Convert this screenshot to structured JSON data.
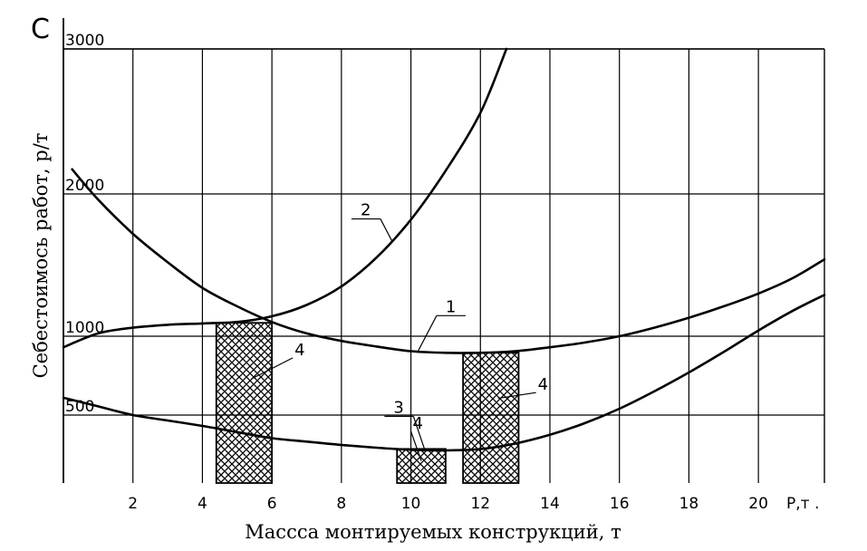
{
  "chart_data": {
    "type": "line",
    "corner_mark": "С",
    "xlabel": "Массса монтируемых конструкций, т",
    "ylabel": "Себестоимось работ, р/т",
    "x_unit_label": "Р,т .",
    "xlim": [
      0,
      21.9
    ],
    "ylim": [
      0,
      3000
    ],
    "grid": true,
    "x_ticks": [
      2,
      4,
      6,
      8,
      10,
      12,
      14,
      16,
      18,
      20
    ],
    "x_tick_labels": [
      "2",
      "4",
      "6",
      "8",
      "10",
      "12",
      "14",
      "16",
      "18",
      "20"
    ],
    "y_ticks": [
      500,
      1000,
      2000,
      3000
    ],
    "y_tick_labels": [
      "500",
      "1000",
      "2000",
      "3000"
    ],
    "series": [
      {
        "name": "1",
        "label_at": [
          11.0,
          1170
        ],
        "x": [
          0.25,
          1,
          2,
          3,
          4,
          5,
          6,
          7,
          8,
          9,
          10,
          11,
          12,
          13,
          14,
          15,
          16,
          17,
          18,
          19,
          20,
          21,
          21.9
        ],
        "y": [
          2170,
          1960,
          1720,
          1520,
          1340,
          1210,
          1100,
          1020,
          970,
          935,
          905,
          895,
          895,
          905,
          930,
          960,
          1000,
          1060,
          1130,
          1210,
          1300,
          1410,
          1540
        ]
      },
      {
        "name": "2",
        "label_at": [
          8.55,
          1850
        ],
        "x": [
          0,
          1,
          2,
          3,
          4,
          5,
          6,
          7,
          8,
          9,
          10,
          11,
          12,
          12.75
        ],
        "y": [
          930,
          1020,
          1060,
          1080,
          1090,
          1100,
          1140,
          1220,
          1350,
          1550,
          1820,
          2160,
          2560,
          3000
        ]
      },
      {
        "name": "3",
        "label_at": [
          9.5,
          515
        ],
        "x": [
          0,
          1,
          2,
          3,
          4,
          5,
          6,
          7,
          8,
          9,
          10,
          11,
          12,
          13,
          14,
          15,
          16,
          17,
          18,
          19,
          20,
          21,
          21.9
        ],
        "y": [
          610,
          555,
          500,
          460,
          420,
          375,
          330,
          305,
          280,
          260,
          245,
          240,
          250,
          290,
          355,
          440,
          540,
          650,
          770,
          900,
          1040,
          1180,
          1290
        ]
      }
    ],
    "hatched_zones": [
      {
        "name": "4",
        "x_range": [
          4.4,
          6.0
        ],
        "label_at": [
          6.6,
          880
        ]
      },
      {
        "name": "4",
        "x_range": [
          9.6,
          11.0
        ],
        "label_at": [
          10.0,
          400
        ]
      },
      {
        "name": "4",
        "x_range": [
          11.5,
          13.1
        ],
        "label_at": [
          13.6,
          660
        ]
      }
    ]
  }
}
